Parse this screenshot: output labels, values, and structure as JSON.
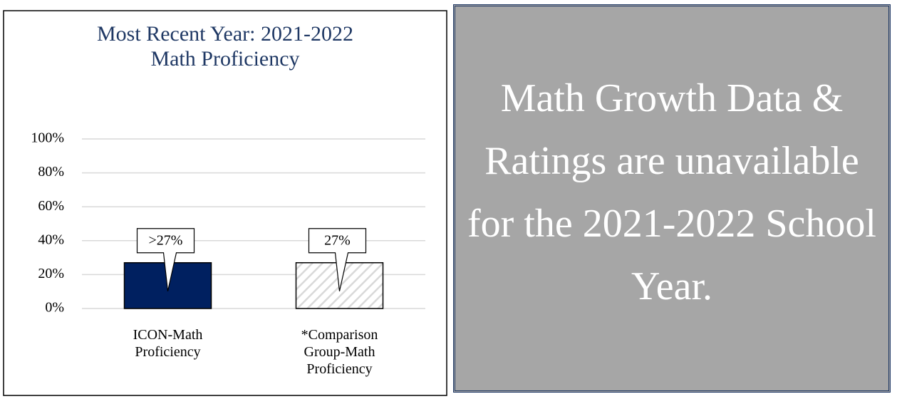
{
  "chart_data": {
    "type": "bar",
    "title": "Most Recent Year: 2021-2022",
    "subtitle": "Math Proficiency",
    "categories": [
      "ICON-Math Proficiency",
      "*Comparison Group-Math Proficiency"
    ],
    "values": [
      27,
      27
    ],
    "value_labels": [
      ">27%",
      "27%"
    ],
    "colors": [
      "#002060",
      "#d9d9d9"
    ],
    "hatch": [
      false,
      true
    ],
    "ylim": [
      0,
      100
    ],
    "yticks": [
      {
        "value": 0,
        "label": "0%"
      },
      {
        "value": 20,
        "label": "20%"
      },
      {
        "value": 40,
        "label": "40%"
      },
      {
        "value": 60,
        "label": "60%"
      },
      {
        "value": 80,
        "label": "80%"
      },
      {
        "value": 100,
        "label": "100%"
      }
    ],
    "grid": true
  },
  "panel": {
    "text": "Math Growth Data & Ratings are unavailable for the 2021-2022 School Year."
  }
}
